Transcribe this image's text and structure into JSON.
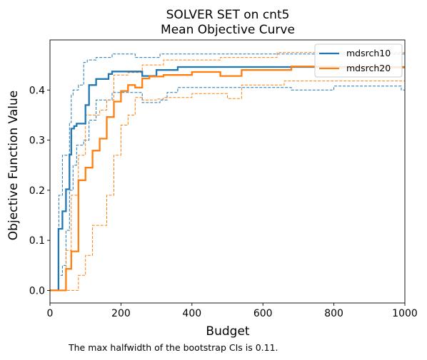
{
  "chart_data": {
    "type": "line",
    "line_style": "step-post",
    "title": [
      "SOLVER SET on cnt5",
      "Mean Objective Curve"
    ],
    "xlabel": "Budget",
    "ylabel": "Objective Function Value",
    "xlim": [
      0,
      1000
    ],
    "ylim": [
      -0.025,
      0.5
    ],
    "xticks": [
      0,
      200,
      400,
      600,
      800,
      1000
    ],
    "yticks": [
      0.0,
      0.1,
      0.2,
      0.3,
      0.4
    ],
    "xtick_labels": [
      "0",
      "200",
      "400",
      "600",
      "800",
      "1000"
    ],
    "ytick_labels": [
      "0.0",
      "0.1",
      "0.2",
      "0.3",
      "0.4"
    ],
    "grid": false,
    "legend_position": "top-right",
    "series": [
      {
        "name": "mdsrch10",
        "color": "#1f77b4",
        "line": "solid",
        "x": [
          0,
          20,
          24,
          35,
          45,
          55,
          60,
          68,
          75,
          80,
          100,
          110,
          130,
          165,
          175,
          260,
          300,
          360,
          650,
          800,
          1000
        ],
        "y": [
          0.0,
          0.0,
          0.123,
          0.158,
          0.202,
          0.271,
          0.323,
          0.328,
          0.333,
          0.333,
          0.37,
          0.41,
          0.422,
          0.432,
          0.437,
          0.428,
          0.44,
          0.446,
          0.446,
          0.446,
          0.445
        ]
      },
      {
        "name": "mdsrch10 CI lower",
        "color": "#1f77b4",
        "line": "dashed",
        "x": [
          0,
          20,
          25,
          35,
          45,
          55,
          65,
          75,
          95,
          110,
          130,
          175,
          260,
          310,
          330,
          360,
          440,
          460,
          680,
          800,
          990,
          1000
        ],
        "y": [
          0.0,
          0.0,
          0.03,
          0.05,
          0.12,
          0.2,
          0.25,
          0.29,
          0.3,
          0.34,
          0.38,
          0.395,
          0.375,
          0.38,
          0.395,
          0.405,
          0.405,
          0.405,
          0.4,
          0.408,
          0.4,
          0.4
        ]
      },
      {
        "name": "mdsrch10 CI upper",
        "color": "#1f77b4",
        "line": "dashed",
        "x": [
          0,
          20,
          25,
          35,
          45,
          55,
          60,
          65,
          70,
          80,
          95,
          105,
          110,
          130,
          175,
          240,
          310,
          360,
          560,
          680,
          1000
        ],
        "y": [
          0.0,
          0.0,
          0.19,
          0.27,
          0.27,
          0.335,
          0.39,
          0.4,
          0.4,
          0.41,
          0.455,
          0.46,
          0.46,
          0.465,
          0.472,
          0.465,
          0.472,
          0.472,
          0.472,
          0.472,
          0.472
        ]
      },
      {
        "name": "mdsrch20",
        "color": "#ff7f0e",
        "line": "solid",
        "x": [
          0,
          40,
          45,
          60,
          80,
          100,
          120,
          140,
          160,
          180,
          200,
          220,
          240,
          260,
          280,
          320,
          400,
          480,
          540,
          680,
          800,
          1000
        ],
        "y": [
          0.0,
          0.0,
          0.043,
          0.078,
          0.22,
          0.245,
          0.279,
          0.303,
          0.346,
          0.377,
          0.398,
          0.41,
          0.405,
          0.423,
          0.427,
          0.43,
          0.436,
          0.428,
          0.44,
          0.447,
          0.445,
          0.445
        ]
      },
      {
        "name": "mdsrch20 CI lower",
        "color": "#ff7f0e",
        "line": "dashed",
        "x": [
          0,
          40,
          60,
          80,
          100,
          120,
          160,
          180,
          200,
          220,
          240,
          260,
          300,
          320,
          400,
          500,
          540,
          660,
          1000
        ],
        "y": [
          0.0,
          0.0,
          0.0,
          0.03,
          0.07,
          0.13,
          0.19,
          0.27,
          0.33,
          0.35,
          0.385,
          0.38,
          0.382,
          0.385,
          0.393,
          0.383,
          0.41,
          0.418,
          0.418
        ]
      },
      {
        "name": "mdsrch20 CI upper",
        "color": "#ff7f0e",
        "line": "dashed",
        "x": [
          0,
          40,
          45,
          60,
          80,
          100,
          120,
          140,
          160,
          180,
          200,
          220,
          260,
          320,
          400,
          480,
          640,
          660,
          1000
        ],
        "y": [
          0.0,
          0.0,
          0.08,
          0.19,
          0.27,
          0.35,
          0.35,
          0.36,
          0.38,
          0.43,
          0.43,
          0.435,
          0.45,
          0.46,
          0.46,
          0.465,
          0.475,
          0.475,
          0.475
        ]
      }
    ],
    "legend": [
      {
        "label": "mdsrch10",
        "color": "#1f77b4"
      },
      {
        "label": "mdsrch20",
        "color": "#ff7f0e"
      }
    ],
    "footnote": "The max halfwidth of the bootstrap CIs is 0.11."
  }
}
